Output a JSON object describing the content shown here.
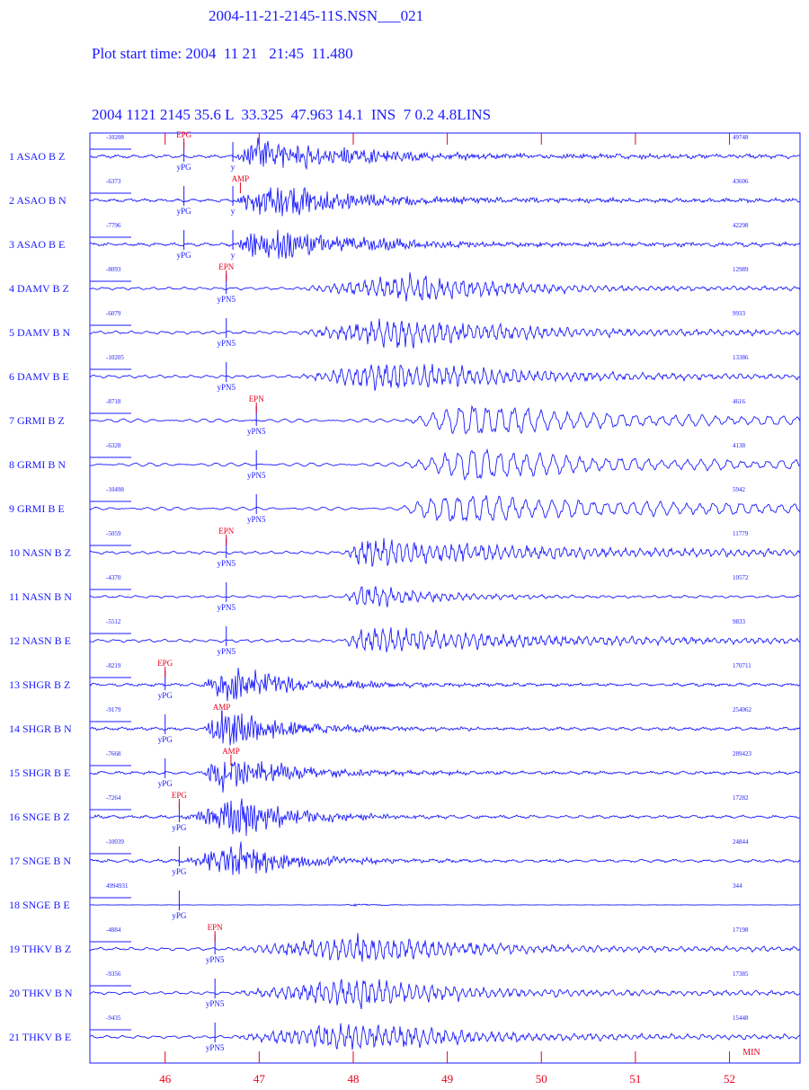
{
  "header": {
    "event_file": "2004-11-21-2145-11S.NSN___021",
    "plot_start": "Plot start time: 2004  11 21   21:45  11.480",
    "hypocenter": "2004 1121 2145 35.6 L  33.325  47.963 14.1  INS  7 0.2 4.8LINS"
  },
  "colors": {
    "trace": "#1a1aff",
    "phase": "#e8001c",
    "frame": "#1a1aff"
  },
  "chart_data": {
    "type": "line",
    "x_axis": {
      "unit_label": "MIN",
      "ticks": [
        "46",
        "47",
        "48",
        "49",
        "50",
        "51",
        "52"
      ],
      "range": [
        45.2,
        52.75
      ]
    },
    "traces": [
      {
        "label": "1  ASAO   B  Z",
        "min": "-10208",
        "max": "49748",
        "onset": 46.75,
        "peak": 47.0,
        "decay": 0.9,
        "wave": "hf",
        "amp": 1.0,
        "end_amp": 0.08
      },
      {
        "label": "2  ASAO   B  N",
        "min": "-6373",
        "max": "43606",
        "onset": 46.75,
        "peak": 47.0,
        "decay": 0.9,
        "wave": "hf",
        "amp": 1.0,
        "end_amp": 0.08
      },
      {
        "label": "3  ASAO   B  E",
        "min": "-7796",
        "max": "42298",
        "onset": 46.75,
        "peak": 47.0,
        "decay": 0.9,
        "wave": "hf",
        "amp": 1.0,
        "end_amp": 0.08
      },
      {
        "label": "4  DAMV   B  Z",
        "min": "-8093",
        "max": "12989",
        "onset": 47.4,
        "peak": 48.7,
        "decay": 1.0,
        "wave": "mix",
        "amp": 0.9,
        "end_amp": 0.1
      },
      {
        "label": "5  DAMV   B  N",
        "min": "-6079",
        "max": "9933",
        "onset": 47.4,
        "peak": 48.5,
        "decay": 1.2,
        "wave": "mix",
        "amp": 1.0,
        "end_amp": 0.12
      },
      {
        "label": "6  DAMV   B  E",
        "min": "-10205",
        "max": "13386",
        "onset": 47.4,
        "peak": 48.5,
        "decay": 1.2,
        "wave": "mix",
        "amp": 1.0,
        "end_amp": 0.12
      },
      {
        "label": "7  GRMI   B  Z",
        "min": "-8718",
        "max": "4616",
        "onset": 48.5,
        "peak": 49.3,
        "decay": 1.0,
        "wave": "lf",
        "amp": 1.0,
        "end_amp": 0.2
      },
      {
        "label": "8  GRMI   B  N",
        "min": "-6328",
        "max": "4138",
        "onset": 48.5,
        "peak": 49.3,
        "decay": 1.0,
        "wave": "lf",
        "amp": 1.0,
        "end_amp": 0.2
      },
      {
        "label": "9  GRMI   B  E",
        "min": "-10498",
        "max": "5942",
        "onset": 48.5,
        "peak": 49.0,
        "decay": 1.2,
        "wave": "lf",
        "amp": 0.9,
        "end_amp": 0.3
      },
      {
        "label": "10  NASN   B  Z",
        "min": "-5059",
        "max": "11779",
        "onset": 47.9,
        "peak": 48.1,
        "decay": 1.6,
        "wave": "mix",
        "amp": 1.0,
        "end_amp": 0.15
      },
      {
        "label": "11  NASN   B  N",
        "min": "-4370",
        "max": "10572",
        "onset": 47.9,
        "peak": 48.1,
        "decay": 0.8,
        "wave": "mix",
        "amp": 0.8,
        "end_amp": 0.05
      },
      {
        "label": "12  NASN   B  E",
        "min": "-5512",
        "max": "9833",
        "onset": 47.9,
        "peak": 48.1,
        "decay": 1.4,
        "wave": "mix",
        "amp": 1.0,
        "end_amp": 0.15
      },
      {
        "label": "13  SHGR   B  Z",
        "min": "-8219",
        "max": "170711",
        "onset": 46.4,
        "peak": 46.65,
        "decay": 0.7,
        "wave": "hf",
        "amp": 1.0,
        "end_amp": 0.05
      },
      {
        "label": "14  SHGR   B  N",
        "min": "-9179",
        "max": "254062",
        "onset": 46.4,
        "peak": 46.6,
        "decay": 0.7,
        "wave": "hf",
        "amp": 1.0,
        "end_amp": 0.05
      },
      {
        "label": "15  SHGR   B  E",
        "min": "-7668",
        "max": "289423",
        "onset": 46.4,
        "peak": 46.6,
        "decay": 0.7,
        "wave": "hf",
        "amp": 1.0,
        "end_amp": 0.05
      },
      {
        "label": "16  SNGE   B  Z",
        "min": "-7264",
        "max": "17282",
        "onset": 46.2,
        "peak": 46.8,
        "decay": 0.6,
        "wave": "hf",
        "amp": 1.0,
        "end_amp": 0.04
      },
      {
        "label": "17  SNGE   B  N",
        "min": "-10039",
        "max": "24844",
        "onset": 46.2,
        "peak": 46.8,
        "decay": 0.6,
        "wave": "hf",
        "amp": 1.0,
        "end_amp": 0.04
      },
      {
        "label": "18  SNGE   B  E",
        "min": "4994931",
        "max": "344",
        "onset": 47.9,
        "peak": 48.0,
        "decay": 0.3,
        "wave": "flat",
        "amp": 0.15,
        "end_amp": 0.03
      },
      {
        "label": "19  THKV   B  Z",
        "min": "-4884",
        "max": "17198",
        "onset": 46.7,
        "peak": 48.1,
        "decay": 1.0,
        "wave": "mix",
        "amp": 1.0,
        "end_amp": 0.12
      },
      {
        "label": "20  THKV   B  N",
        "min": "-9356",
        "max": "17385",
        "onset": 46.7,
        "peak": 48.1,
        "decay": 1.0,
        "wave": "mix",
        "amp": 1.0,
        "end_amp": 0.12
      },
      {
        "label": "21  THKV   B  E",
        "min": "-9435",
        "max": "15448",
        "onset": 46.7,
        "peak": 48.1,
        "decay": 1.0,
        "wave": "mix",
        "amp": 1.0,
        "end_amp": 0.12
      }
    ],
    "picks": [
      {
        "trace": 0,
        "x": 46.2,
        "label": "yPG",
        "pos": "below"
      },
      {
        "trace": 0,
        "x": 46.2,
        "label": "EPG",
        "pos": "above",
        "color": "phase"
      },
      {
        "trace": 0,
        "x": 46.72,
        "label": "y",
        "pos": "below"
      },
      {
        "trace": 1,
        "x": 46.2,
        "label": "yPG",
        "pos": "below"
      },
      {
        "trace": 1,
        "x": 46.72,
        "label": "y",
        "pos": "below"
      },
      {
        "trace": 1,
        "x": 46.8,
        "label": "AMP",
        "pos": "above",
        "color": "phase"
      },
      {
        "trace": 2,
        "x": 46.2,
        "label": "yPG",
        "pos": "below"
      },
      {
        "trace": 2,
        "x": 46.72,
        "label": "y",
        "pos": "below"
      },
      {
        "trace": 3,
        "x": 46.65,
        "label": "yPN5",
        "pos": "below"
      },
      {
        "trace": 3,
        "x": 46.65,
        "label": "EPN",
        "pos": "above",
        "color": "phase"
      },
      {
        "trace": 4,
        "x": 46.65,
        "label": "yPN5",
        "pos": "below"
      },
      {
        "trace": 5,
        "x": 46.65,
        "label": "yPN5",
        "pos": "below"
      },
      {
        "trace": 6,
        "x": 46.97,
        "label": "yPN5",
        "pos": "below"
      },
      {
        "trace": 6,
        "x": 46.97,
        "label": "EPN",
        "pos": "above",
        "color": "phase"
      },
      {
        "trace": 7,
        "x": 46.97,
        "label": "yPN5",
        "pos": "below"
      },
      {
        "trace": 8,
        "x": 46.97,
        "label": "yPN5",
        "pos": "below"
      },
      {
        "trace": 9,
        "x": 46.65,
        "label": "yPN5",
        "pos": "below"
      },
      {
        "trace": 9,
        "x": 46.65,
        "label": "EPN",
        "pos": "above",
        "color": "phase"
      },
      {
        "trace": 10,
        "x": 46.65,
        "label": "yPN5",
        "pos": "below"
      },
      {
        "trace": 11,
        "x": 46.65,
        "label": "yPN5",
        "pos": "below"
      },
      {
        "trace": 12,
        "x": 46.0,
        "label": "yPG",
        "pos": "below"
      },
      {
        "trace": 12,
        "x": 46.0,
        "label": "EPG",
        "pos": "above",
        "color": "phase"
      },
      {
        "trace": 13,
        "x": 46.0,
        "label": "yPG",
        "pos": "below"
      },
      {
        "trace": 13,
        "x": 46.6,
        "label": "AMP",
        "pos": "above",
        "color": "phase"
      },
      {
        "trace": 14,
        "x": 46.0,
        "label": "yPG",
        "pos": "below"
      },
      {
        "trace": 14,
        "x": 46.7,
        "label": "AMP",
        "pos": "above",
        "color": "phase"
      },
      {
        "trace": 15,
        "x": 46.15,
        "label": "yPG",
        "pos": "below"
      },
      {
        "trace": 15,
        "x": 46.15,
        "label": "EPG",
        "pos": "above",
        "color": "phase"
      },
      {
        "trace": 16,
        "x": 46.15,
        "label": "yPG",
        "pos": "below"
      },
      {
        "trace": 17,
        "x": 46.15,
        "label": "yPG",
        "pos": "below"
      },
      {
        "trace": 18,
        "x": 46.53,
        "label": "yPN5",
        "pos": "below"
      },
      {
        "trace": 18,
        "x": 46.53,
        "label": "EPN",
        "pos": "above",
        "color": "phase"
      },
      {
        "trace": 19,
        "x": 46.53,
        "label": "yPN5",
        "pos": "below"
      },
      {
        "trace": 20,
        "x": 46.53,
        "label": "yPN5",
        "pos": "below"
      }
    ]
  }
}
